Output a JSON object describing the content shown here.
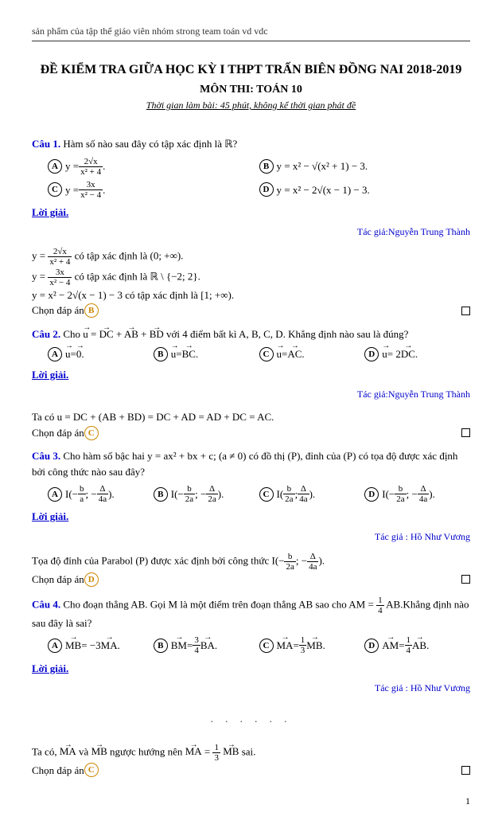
{
  "header_top": "sản phẩm của tập thể giáo viên nhóm strong team toán vd vdc",
  "title_main": "ĐỀ KIỂM TRA GIỮA HỌC KỲ I THPT TRẤN BIÊN ĐỒNG NAI 2018-2019",
  "title_sub": "MÔN THI: TOÁN 10",
  "title_time": "Thời gian làm bài: 45 phút, không kể thời gian phát đề",
  "solution_label": "Lời giải.",
  "author1": "Tác giả:Nguyễn Trung Thành",
  "author2": "Tác giả : Hồ Như Vương",
  "page_number": "1",
  "q1": {
    "label": "Câu 1.",
    "text": "  Hàm số nào sau đây có tập xác định là ℝ?",
    "optA_pre": "y = ",
    "optA_num": "2√x",
    "optA_den": "x² + 4",
    "optA_post": ".",
    "optB": " y = x² − √(x² + 1) − 3.",
    "optC_pre": "y = ",
    "optC_num": "3x",
    "optC_den": "x² − 4",
    "optC_post": ".",
    "optD": " y = x² − 2√(x − 1) − 3.",
    "sol1_pre": "y = ",
    "sol1_num": "2√x",
    "sol1_den": "x² + 4",
    "sol1_post": " có tập xác định là (0; +∞).",
    "sol2_pre": "y = ",
    "sol2_num": "3x",
    "sol2_den": "x² − 4",
    "sol2_post": " có tập xác định là ℝ \\ {−2; 2}.",
    "sol3": "y = x² − 2√(x − 1) − 3 có tập xác định là [1; +∞).",
    "answer": "Chọn đáp án ",
    "answer_letter": "B"
  },
  "q2": {
    "label": "Câu 2.",
    "text_part1": "  Cho ",
    "u_vec": "u",
    "eq": " = ",
    "DC": "DC",
    "AB": "AB",
    "BD": "BD",
    "text_part2": " với 4 điểm bất kì A, B, C, D. Khẳng định nào sau là đúng?",
    "optA_pre": " ",
    "optA_u": "u",
    "optA_txt": " = ",
    "optA_v": "0",
    "optA_post": ".",
    "optB_pre": " ",
    "optB_u": "u",
    "optB_txt": " = ",
    "optB_v": "BC",
    "optB_post": ".",
    "optC_pre": " ",
    "optC_u": "u",
    "optC_txt": " = ",
    "optC_v": "AC",
    "optC_post": ".",
    "optD_pre": " ",
    "optD_u": "u",
    "optD_txt": " = 2",
    "optD_v": "DC",
    "optD_post": ".",
    "sol_pre": "Ta có ",
    "sol_chain": "u = DC + (AB + BD) = DC + AD = AD + DC = AC.",
    "answer": "Chọn đáp án ",
    "answer_letter": "C"
  },
  "q3": {
    "label": "Câu 3.",
    "text": "  Cho hàm số bậc hai y = ax² + bx + c; (a ≠ 0) có đồ thị (P), đỉnh của (P) có tọa độ được xác định bởi công thức nào sau đây?",
    "A_pre": " I(−",
    "A_n1": "b",
    "A_d1": "a",
    "A_mid": "; −",
    "A_n2": "Δ",
    "A_d2": "4a",
    "A_post": ").",
    "B_pre": " I(−",
    "B_n1": "b",
    "B_d1": "2a",
    "B_mid": "; −",
    "B_n2": "Δ",
    "B_d2": "2a",
    "B_post": ").",
    "C_pre": " I(",
    "C_n1": "b",
    "C_d1": "2a",
    "C_mid": "; ",
    "C_n2": "Δ",
    "C_d2": "4a",
    "C_post": ").",
    "D_pre": " I(−",
    "D_n1": "b",
    "D_d1": "2a",
    "D_mid": "; −",
    "D_n2": "Δ",
    "D_d2": "4a",
    "D_post": ").",
    "sol_pre": "Tọa độ đỉnh của Parabol (P) được xác định bởi công thức I(−",
    "sol_n1": "b",
    "sol_d1": "2a",
    "sol_mid": "; −",
    "sol_n2": "Δ",
    "sol_d2": "4a",
    "sol_post": ").",
    "answer": "Chọn đáp án ",
    "answer_letter": "D"
  },
  "q4": {
    "label": "Câu 4.",
    "text_part1": "  Cho đoạn thẳng AB. Gọi M là một điểm trên đoạn thẳng AB sao cho AM = ",
    "fn": "1",
    "fd": "4",
    "text_part2": "AB.Khẳng định nào sau đây là sai?",
    "A_pre": " ",
    "A_l": "MB",
    "A_txt": " = −3",
    "A_r": "MA",
    "A_post": ".",
    "B_pre": " ",
    "B_l": "BM",
    "B_txt": " = ",
    "B_n": "3",
    "B_d": "4",
    "B_r": "BA",
    "B_post": ".",
    "C_pre": " ",
    "C_l": "MA",
    "C_txt": " = ",
    "C_n": "1",
    "C_d": "3",
    "C_r": "MB",
    "C_post": ".",
    "D_pre": " ",
    "D_l": "AM",
    "D_txt": " = ",
    "D_n": "1",
    "D_d": "4",
    "D_r": "AB",
    "D_post": ".",
    "sol_pre": "Ta có, ",
    "sol_v1": "MA",
    "sol_and": " và ",
    "sol_v2": "MB",
    "sol_mid": " ngược hướng nên ",
    "sol_l": "MA",
    "sol_eq": " = ",
    "sol_n": "1",
    "sol_d": "3",
    "sol_r": "MB",
    "sol_post": " sai.",
    "answer": "Chọn đáp án ",
    "answer_letter": "C"
  }
}
